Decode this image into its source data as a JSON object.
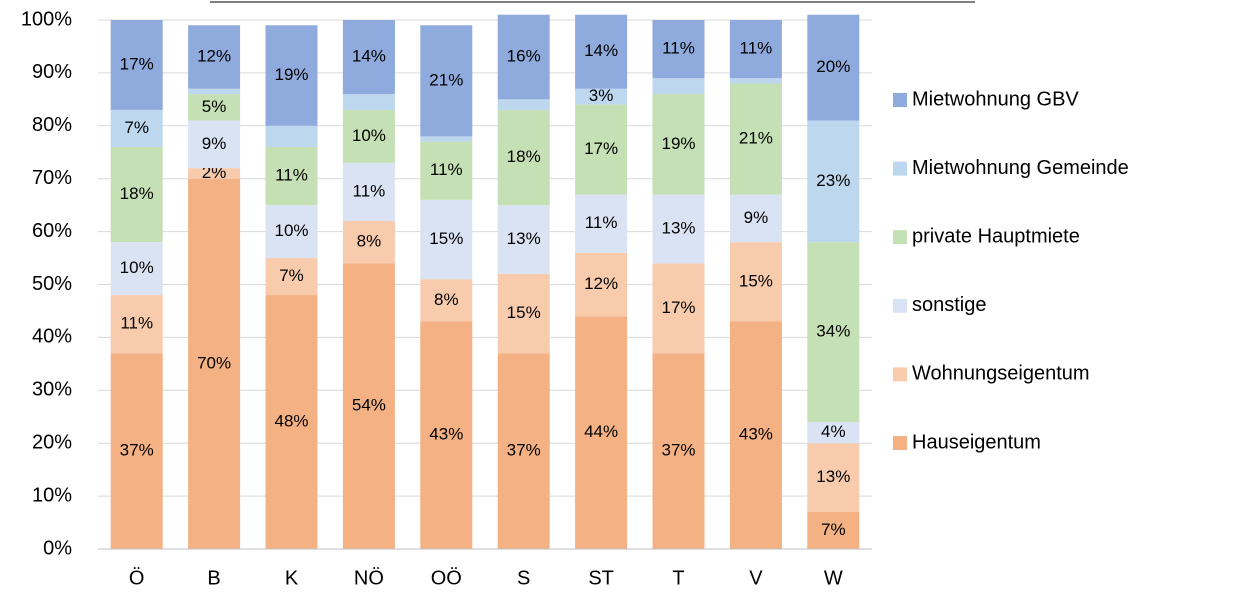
{
  "chart_data": {
    "type": "stacked-bar",
    "categories": [
      "Ö",
      "B",
      "K",
      "NÖ",
      "OÖ",
      "S",
      "ST",
      "T",
      "V",
      "W"
    ],
    "series": [
      {
        "name": "Hauseigentum",
        "color": "#f4b183",
        "values": [
          37,
          70,
          48,
          54,
          43,
          37,
          44,
          37,
          43,
          7
        ],
        "value_labels": [
          "37%",
          "70%",
          "48%",
          "54%",
          "43%",
          "37%",
          "44%",
          "37%",
          "43%",
          "7%"
        ]
      },
      {
        "name": "Wohnungseigentum",
        "color": "#f8cbad",
        "values": [
          11,
          2,
          7,
          8,
          8,
          15,
          12,
          17,
          15,
          13
        ],
        "value_labels": [
          "11%",
          "2%",
          "7%",
          "8%",
          "8%",
          "15%",
          "12%",
          "17%",
          "15%",
          "13%"
        ]
      },
      {
        "name": "sonstige",
        "color": "#dae3f3",
        "values": [
          10,
          9,
          10,
          11,
          15,
          13,
          11,
          13,
          9,
          4
        ],
        "value_labels": [
          "10%",
          "9%",
          "10%",
          "11%",
          "15%",
          "13%",
          "11%",
          "13%",
          "9%",
          "4%"
        ]
      },
      {
        "name": "private Hauptmiete",
        "color": "#c5e0b4",
        "values": [
          18,
          5,
          11,
          10,
          11,
          18,
          17,
          19,
          21,
          34
        ],
        "value_labels": [
          "18%",
          "5%",
          "11%",
          "10%",
          "11%",
          "18%",
          "17%",
          "19%",
          "21%",
          "34%"
        ]
      },
      {
        "name": "Mietwohnung Gemeinde",
        "color": "#bdd7ee",
        "values": [
          7,
          1,
          4,
          3,
          1,
          2,
          3,
          3,
          1,
          23
        ],
        "value_labels": [
          "7%",
          null,
          null,
          null,
          null,
          null,
          "3%",
          null,
          null,
          "23%"
        ]
      },
      {
        "name": "Mietwohnung GBV",
        "color": "#8faadc",
        "values": [
          17,
          12,
          19,
          14,
          21,
          16,
          14,
          11,
          11,
          20
        ],
        "value_labels": [
          "17%",
          "12%",
          "19%",
          "14%",
          "21%",
          "16%",
          "14%",
          "11%",
          "11%",
          "20%"
        ]
      }
    ],
    "ylim": [
      0,
      100
    ],
    "yticks": [
      {
        "value": 0,
        "label": "0%"
      },
      {
        "value": 10,
        "label": "10%"
      },
      {
        "value": 20,
        "label": "20%"
      },
      {
        "value": 30,
        "label": "30%"
      },
      {
        "value": 40,
        "label": "40%"
      },
      {
        "value": 50,
        "label": "50%"
      },
      {
        "value": 60,
        "label": "60%"
      },
      {
        "value": 70,
        "label": "70%"
      },
      {
        "value": 80,
        "label": "80%"
      },
      {
        "value": 90,
        "label": "90%"
      },
      {
        "value": 100,
        "label": "100%"
      }
    ],
    "grid": true,
    "legend": "right"
  }
}
